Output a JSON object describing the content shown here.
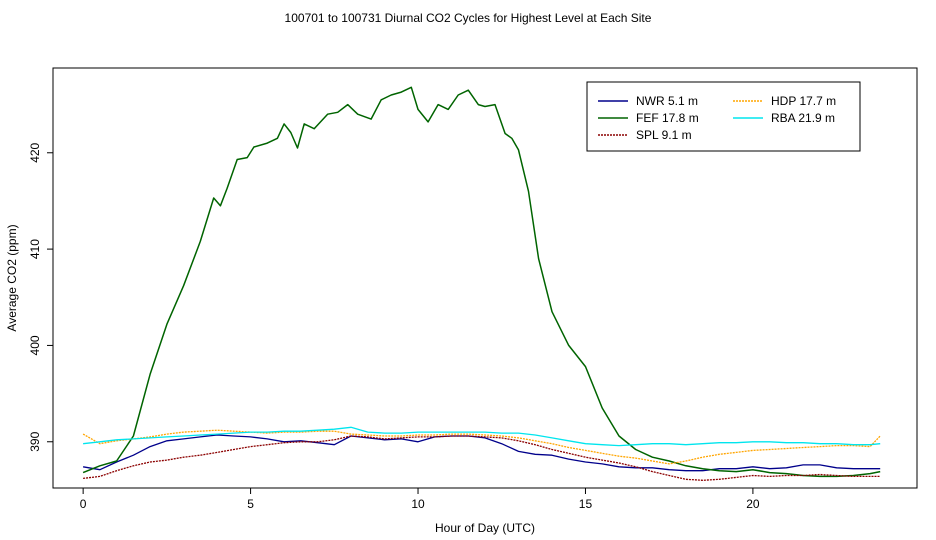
{
  "chart_data": {
    "type": "line",
    "title": "100701  to  100731 Diurnal CO2 Cycles for Highest Level at Each Site",
    "xlabel": "Hour of Day (UTC)",
    "ylabel": "Average CO2 (ppm)",
    "xlim": [
      -0.9,
      24.9
    ],
    "ylim": [
      385.2,
      428.8
    ],
    "xticks": [
      0,
      5,
      10,
      15,
      20
    ],
    "xtick_labels": [
      "0",
      "5",
      "10",
      "15",
      "20"
    ],
    "yticks": [
      390,
      400,
      410,
      420
    ],
    "ytick_labels": [
      "390",
      "400",
      "410",
      "420"
    ],
    "grid": false,
    "legend_position": "top-right",
    "series": [
      {
        "name": "NWR",
        "legend_label": "NWR   5.1 m",
        "color": "#00008b",
        "x": [
          0,
          0.5,
          1,
          1.5,
          2,
          2.5,
          3,
          3.5,
          4,
          4.5,
          5,
          5.5,
          6,
          6.5,
          7,
          7.5,
          8,
          8.5,
          9,
          9.5,
          10,
          10.5,
          11,
          11.5,
          12,
          12.5,
          13,
          13.5,
          14,
          14.5,
          15,
          15.5,
          16,
          16.5,
          17,
          17.5,
          18,
          18.5,
          19,
          19.5,
          20,
          20.5,
          21,
          21.5,
          22,
          22.5,
          23,
          23.5,
          23.8
        ],
        "values": [
          387.4,
          387.1,
          387.9,
          388.6,
          389.5,
          390.1,
          390.3,
          390.5,
          390.7,
          390.6,
          390.5,
          390.3,
          390.0,
          390.1,
          389.9,
          389.7,
          390.6,
          390.4,
          390.2,
          390.3,
          390.0,
          390.5,
          390.6,
          390.6,
          390.4,
          389.8,
          389.0,
          388.7,
          388.6,
          388.2,
          387.9,
          387.7,
          387.4,
          387.3,
          387.3,
          387.1,
          387.0,
          387.0,
          387.2,
          387.2,
          387.4,
          387.2,
          387.3,
          387.6,
          387.6,
          387.3,
          387.2,
          387.2,
          387.2
        ]
      },
      {
        "name": "FEF",
        "legend_label": "FEF   17.8 m",
        "color": "#006400",
        "x": [
          0,
          0.5,
          1,
          1.5,
          2,
          2.5,
          3,
          3.5,
          3.9,
          4.1,
          4.3,
          4.6,
          4.9,
          5.1,
          5.5,
          5.8,
          6.0,
          6.2,
          6.4,
          6.6,
          6.9,
          7.3,
          7.6,
          7.9,
          8.2,
          8.6,
          8.9,
          9.2,
          9.5,
          9.8,
          10.0,
          10.3,
          10.6,
          10.9,
          11.2,
          11.5,
          11.8,
          12.0,
          12.3,
          12.6,
          12.8,
          13.0,
          13.3,
          13.6,
          14.0,
          14.5,
          15.0,
          15.5,
          16.0,
          16.5,
          17.0,
          17.5,
          18.0,
          18.5,
          19.0,
          19.5,
          20.0,
          20.5,
          21.0,
          21.5,
          22.0,
          22.5,
          23.0,
          23.5,
          23.8
        ],
        "values": [
          386.8,
          387.5,
          388.0,
          390.6,
          397.0,
          402.2,
          406.2,
          410.8,
          415.3,
          414.5,
          416.3,
          419.3,
          419.5,
          420.6,
          421.0,
          421.5,
          423.0,
          422.1,
          420.5,
          423.0,
          422.5,
          424.0,
          424.2,
          425.0,
          424.0,
          423.5,
          425.5,
          426.0,
          426.3,
          426.8,
          424.5,
          423.2,
          425.0,
          424.5,
          426.0,
          426.5,
          425.0,
          424.8,
          425.0,
          422.0,
          421.5,
          420.3,
          416.0,
          409.0,
          403.5,
          400.0,
          397.8,
          393.5,
          390.6,
          389.2,
          388.4,
          388.0,
          387.5,
          387.2,
          387.0,
          386.9,
          387.1,
          386.8,
          386.7,
          386.5,
          386.4,
          386.4,
          386.5,
          386.7,
          386.9
        ]
      },
      {
        "name": "SPL",
        "legend_label": "SPL   9.1 m",
        "color": "#8b0000",
        "x": [
          0,
          0.5,
          1,
          1.5,
          2,
          2.5,
          3,
          3.5,
          4,
          4.5,
          5,
          5.5,
          6,
          6.5,
          7,
          7.5,
          8,
          8.5,
          9,
          9.5,
          10,
          10.5,
          11,
          11.5,
          12,
          12.5,
          13,
          13.5,
          14,
          14.5,
          15,
          15.5,
          16,
          16.5,
          17,
          17.5,
          18,
          18.5,
          19,
          19.5,
          20,
          20.5,
          21,
          21.5,
          22,
          22.5,
          23,
          23.5,
          23.8
        ],
        "values": [
          386.2,
          386.4,
          387.0,
          387.5,
          387.9,
          388.1,
          388.4,
          388.6,
          388.9,
          389.2,
          389.5,
          389.7,
          389.9,
          390.0,
          390.0,
          390.2,
          390.6,
          390.5,
          390.3,
          390.4,
          390.5,
          390.5,
          390.6,
          390.6,
          390.5,
          390.4,
          390.1,
          389.7,
          389.2,
          388.8,
          388.4,
          388.1,
          387.8,
          387.4,
          386.9,
          386.5,
          386.1,
          386.0,
          386.1,
          386.3,
          386.5,
          386.4,
          386.5,
          386.5,
          386.6,
          386.5,
          386.4,
          386.4,
          386.4
        ]
      },
      {
        "name": "HDP",
        "legend_label": "HDP    17.7 m",
        "color": "#ffa500",
        "x": [
          0,
          0.5,
          1,
          1.5,
          2,
          2.5,
          3,
          3.5,
          4,
          4.5,
          5,
          5.5,
          6,
          6.5,
          7,
          7.5,
          8,
          8.5,
          9,
          9.5,
          10,
          10.5,
          11,
          11.5,
          12,
          12.5,
          13,
          13.5,
          14,
          14.5,
          15,
          15.5,
          16,
          16.5,
          17,
          17.5,
          18,
          18.5,
          19,
          19.5,
          20,
          20.5,
          21,
          21.5,
          22,
          22.5,
          23,
          23.5,
          23.8
        ],
        "values": [
          390.8,
          389.8,
          390.1,
          390.3,
          390.5,
          390.8,
          391.0,
          391.1,
          391.2,
          391.1,
          391.0,
          390.9,
          391.0,
          391.0,
          391.1,
          391.1,
          390.8,
          390.7,
          390.6,
          390.6,
          390.7,
          390.7,
          390.8,
          390.8,
          390.7,
          390.6,
          390.4,
          390.1,
          389.8,
          389.4,
          389.1,
          388.8,
          388.5,
          388.3,
          388.0,
          387.7,
          388.0,
          388.4,
          388.7,
          388.9,
          389.1,
          389.2,
          389.3,
          389.4,
          389.5,
          389.6,
          389.6,
          389.5,
          390.6
        ]
      },
      {
        "name": "RBA",
        "legend_label": "RBA    21.9 m",
        "color": "#00e5ee",
        "x": [
          0,
          0.5,
          1,
          1.5,
          2,
          2.5,
          3,
          3.5,
          4,
          4.5,
          5,
          5.5,
          6,
          6.5,
          7,
          7.5,
          8,
          8.5,
          9,
          9.5,
          10,
          10.5,
          11,
          11.5,
          12,
          12.5,
          13,
          13.5,
          14,
          14.5,
          15,
          15.5,
          16,
          16.5,
          17,
          17.5,
          18,
          18.5,
          19,
          19.5,
          20,
          20.5,
          21,
          21.5,
          22,
          22.5,
          23,
          23.5,
          23.8
        ],
        "values": [
          389.8,
          390.0,
          390.2,
          390.3,
          390.4,
          390.5,
          390.6,
          390.7,
          390.8,
          390.9,
          391.0,
          391.0,
          391.1,
          391.1,
          391.2,
          391.3,
          391.5,
          391.0,
          390.9,
          390.9,
          391.0,
          391.0,
          391.0,
          391.0,
          391.0,
          390.9,
          390.9,
          390.7,
          390.4,
          390.1,
          389.8,
          389.7,
          389.6,
          389.7,
          389.8,
          389.8,
          389.7,
          389.8,
          389.9,
          389.9,
          390.0,
          390.0,
          389.9,
          389.9,
          389.8,
          389.8,
          389.7,
          389.7,
          389.8
        ]
      }
    ]
  }
}
